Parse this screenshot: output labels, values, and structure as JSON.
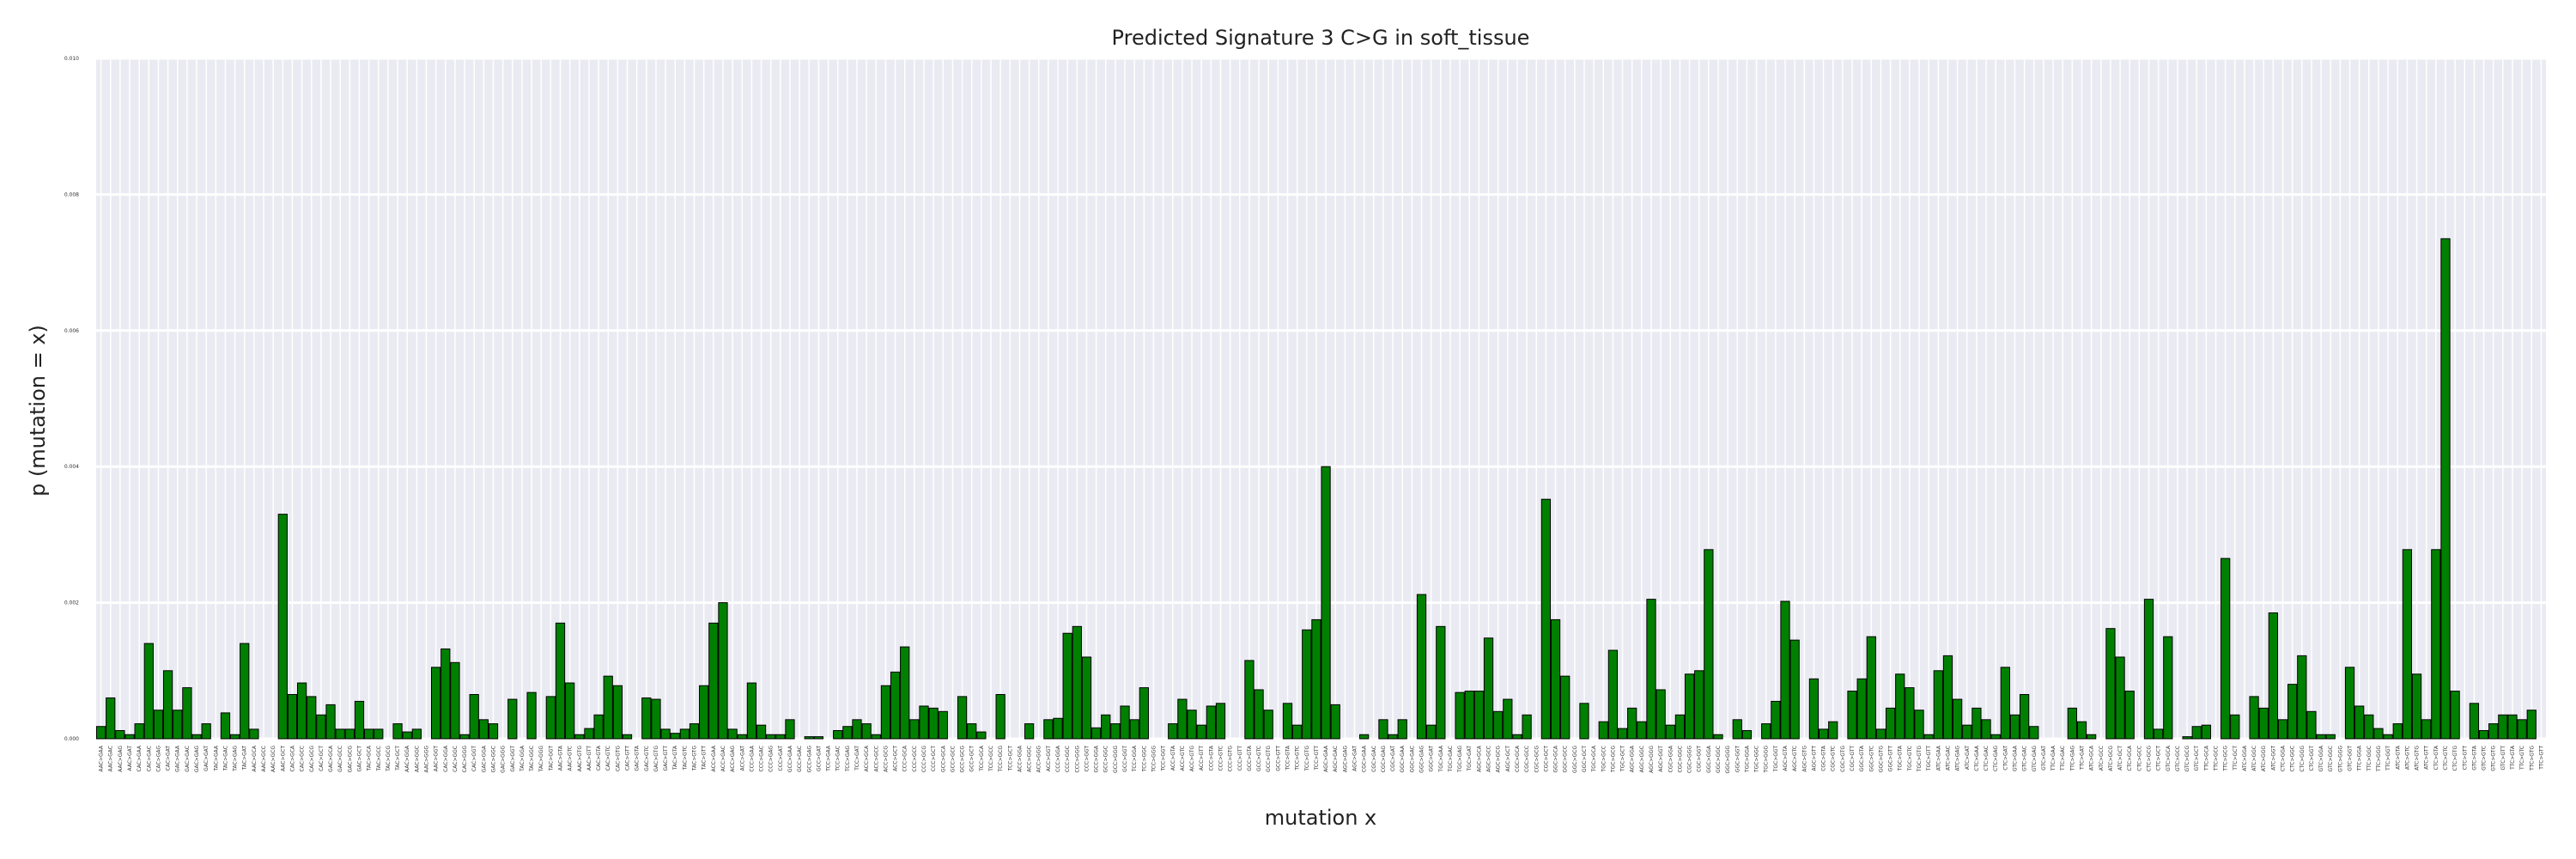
{
  "chart_data": {
    "type": "bar",
    "title": "Predicted Signature 3 C>G in soft_tissue",
    "xlabel": "mutation x",
    "ylabel": "p (mutation = x)",
    "ylim": [
      0,
      0.01
    ],
    "yticks": [
      "0.000",
      "0.002",
      "0.004",
      "0.006",
      "0.008",
      "0.010"
    ],
    "grid": true,
    "bar_color": "#008000",
    "edge_color": "#000000",
    "background": "#eaeaf2",
    "categories": [
      "AAC>GAA",
      "AAC>GAC",
      "AAC>GAG",
      "AAC>GAT",
      "CAC>GAA",
      "CAC>GAC",
      "CAC>GAG",
      "CAC>GAT",
      "GAC>GAA",
      "GAC>GAC",
      "GAC>GAG",
      "GAC>GAT",
      "TAC>GAA",
      "TAC>GAC",
      "TAC>GAG",
      "TAC>GAT",
      "AAC>GCA",
      "AAC>GCC",
      "AAC>GCG",
      "AAC>GCT",
      "CAC>GCA",
      "CAC>GCC",
      "CAC>GCG",
      "CAC>GCT",
      "GAC>GCA",
      "GAC>GCC",
      "GAC>GCG",
      "GAC>GCT",
      "TAC>GCA",
      "TAC>GCC",
      "TAC>GCG",
      "TAC>GCT",
      "AAC>GGA",
      "AAC>GGC",
      "AAC>GGG",
      "AAC>GGT",
      "CAC>GGA",
      "CAC>GGC",
      "CAC>GGG",
      "CAC>GGT",
      "GAC>GGA",
      "GAC>GGC",
      "GAC>GGG",
      "GAC>GGT",
      "TAC>GGA",
      "TAC>GGC",
      "TAC>GGG",
      "TAC>GGT",
      "AAC>GTA",
      "AAC>GTC",
      "AAC>GTG",
      "AAC>GTT",
      "CAC>GTA",
      "CAC>GTC",
      "CAC>GTG",
      "CAC>GTT",
      "GAC>GTA",
      "GAC>GTC",
      "GAC>GTG",
      "GAC>GTT",
      "TAC>GTA",
      "TAC>GTC",
      "TAC>GTG",
      "TAC>GTT",
      "ACC>GAA",
      "ACC>GAC",
      "ACC>GAG",
      "ACC>GAT",
      "CCC>GAA",
      "CCC>GAC",
      "CCC>GAG",
      "CCC>GAT",
      "GCC>GAA",
      "GCC>GAC",
      "GCC>GAG",
      "GCC>GAT",
      "TCC>GAA",
      "TCC>GAC",
      "TCC>GAG",
      "TCC>GAT",
      "ACC>GCA",
      "ACC>GCC",
      "ACC>GCG",
      "ACC>GCT",
      "CCC>GCA",
      "CCC>GCC",
      "CCC>GCG",
      "CCC>GCT",
      "GCC>GCA",
      "GCC>GCC",
      "GCC>GCG",
      "GCC>GCT",
      "TCC>GCA",
      "TCC>GCC",
      "TCC>GCG",
      "TCC>GCT",
      "ACC>GGA",
      "ACC>GGC",
      "ACC>GGG",
      "ACC>GGT",
      "CCC>GGA",
      "CCC>GGC",
      "CCC>GGG",
      "CCC>GGT",
      "GCC>GGA",
      "GCC>GGC",
      "GCC>GGG",
      "GCC>GGT",
      "TCC>GGA",
      "TCC>GGC",
      "TCC>GGG",
      "TCC>GGT",
      "ACC>GTA",
      "ACC>GTC",
      "ACC>GTG",
      "ACC>GTT",
      "CCC>GTA",
      "CCC>GTC",
      "CCC>GTG",
      "CCC>GTT",
      "GCC>GTA",
      "GCC>GTC",
      "GCC>GTG",
      "GCC>GTT",
      "TCC>GTA",
      "TCC>GTC",
      "TCC>GTG",
      "TCC>GTT",
      "AGC>GAA",
      "AGC>GAC",
      "AGC>GAG",
      "AGC>GAT",
      "CGC>GAA",
      "CGC>GAC",
      "CGC>GAG",
      "CGC>GAT",
      "GGC>GAA",
      "GGC>GAC",
      "GGC>GAG",
      "GGC>GAT",
      "TGC>GAA",
      "TGC>GAC",
      "TGC>GAG",
      "TGC>GAT",
      "AGC>GCA",
      "AGC>GCC",
      "AGC>GCG",
      "AGC>GCT",
      "CGC>GCA",
      "CGC>GCC",
      "CGC>GCG",
      "CGC>GCT",
      "GGC>GCA",
      "GGC>GCC",
      "GGC>GCG",
      "GGC>GCT",
      "TGC>GCA",
      "TGC>GCC",
      "TGC>GCG",
      "TGC>GCT",
      "AGC>GGA",
      "AGC>GGC",
      "AGC>GGG",
      "AGC>GGT",
      "CGC>GGA",
      "CGC>GGC",
      "CGC>GGG",
      "CGC>GGT",
      "GGC>GGA",
      "GGC>GGC",
      "GGC>GGG",
      "GGC>GGT",
      "TGC>GGA",
      "TGC>GGC",
      "TGC>GGG",
      "TGC>GGT",
      "AGC>GTA",
      "AGC>GTC",
      "AGC>GTG",
      "AGC>GTT",
      "CGC>GTA",
      "CGC>GTC",
      "CGC>GTG",
      "CGC>GTT",
      "GGC>GTA",
      "GGC>GTC",
      "GGC>GTG",
      "GGC>GTT",
      "TGC>GTA",
      "TGC>GTC",
      "TGC>GTG",
      "TGC>GTT",
      "ATC>GAA",
      "ATC>GAC",
      "ATC>GAG",
      "ATC>GAT",
      "CTC>GAA",
      "CTC>GAC",
      "CTC>GAG",
      "CTC>GAT",
      "GTC>GAA",
      "GTC>GAC",
      "GTC>GAG",
      "GTC>GAT",
      "TTC>GAA",
      "TTC>GAC",
      "TTC>GAG",
      "TTC>GAT",
      "ATC>GCA",
      "ATC>GCC",
      "ATC>GCG",
      "ATC>GCT",
      "CTC>GCA",
      "CTC>GCC",
      "CTC>GCG",
      "CTC>GCT",
      "GTC>GCA",
      "GTC>GCC",
      "GTC>GCG",
      "GTC>GCT",
      "TTC>GCA",
      "TTC>GCC",
      "TTC>GCG",
      "TTC>GCT",
      "ATC>GGA",
      "ATC>GGC",
      "ATC>GGG",
      "ATC>GGT",
      "CTC>GGA",
      "CTC>GGC",
      "CTC>GGG",
      "CTC>GGT",
      "GTC>GGA",
      "GTC>GGC",
      "GTC>GGG",
      "GTC>GGT",
      "TTC>GGA",
      "TTC>GGC",
      "TTC>GGG",
      "TTC>GGT",
      "ATC>GTA",
      "ATC>GTC",
      "ATC>GTG",
      "ATC>GTT",
      "CTC>GTA",
      "CTC>GTC",
      "CTC>GTG",
      "CTC>GTT",
      "GTC>GTA",
      "GTC>GTC",
      "GTC>GTG",
      "GTC>GTT",
      "TTC>GTA",
      "TTC>GTC",
      "TTC>GTG",
      "TTC>GTT"
    ],
    "values": [
      0.00018,
      0.0006,
      0.00012,
      6e-05,
      0.00022,
      0.0014,
      0.00042,
      0.001,
      0.00042,
      0.00075,
      6e-05,
      0.00022,
      0.0,
      0.00038,
      6e-05,
      0.0014,
      0.00014,
      0.0,
      0.0,
      0.0033,
      0.00065,
      0.00082,
      0.00062,
      0.00035,
      0.0005,
      0.00014,
      0.00014,
      0.00055,
      0.00014,
      0.00014,
      0.0,
      0.00022,
      0.0001,
      0.00014,
      0.0,
      0.00105,
      0.00132,
      0.00112,
      6e-05,
      0.00065,
      0.00028,
      0.00022,
      0.0,
      0.00058,
      0.0,
      0.00068,
      0.0,
      0.00062,
      0.0017,
      0.00082,
      6e-05,
      0.00015,
      0.00035,
      0.00092,
      0.00078,
      6e-05,
      0.0,
      0.0006,
      0.00058,
      0.00014,
      8e-05,
      0.00014,
      0.00022,
      0.00078,
      0.0017,
      0.002,
      0.00014,
      6e-05,
      0.00082,
      0.0002,
      6e-05,
      6e-05,
      0.00028,
      0.0,
      3e-05,
      3e-05,
      0.0,
      0.00012,
      0.00018,
      0.00028,
      0.00022,
      6e-05,
      0.00078,
      0.00098,
      0.00135,
      0.00028,
      0.00048,
      0.00045,
      0.0004,
      0.0,
      0.00062,
      0.00022,
      0.0001,
      0.0,
      0.00065,
      0.0,
      0.0,
      0.00022,
      0.0,
      0.00028,
      0.0003,
      0.00155,
      0.00165,
      0.0012,
      0.00016,
      0.00035,
      0.00022,
      0.00048,
      0.00028,
      0.00075,
      0.0,
      0.0,
      0.00022,
      0.00058,
      0.00042,
      0.0002,
      0.00048,
      0.00052,
      0.0,
      0.0,
      0.00115,
      0.00072,
      0.00042,
      0.0,
      0.00052,
      0.0002,
      0.0016,
      0.00175,
      0.004,
      0.0005,
      0.0,
      0.0,
      6e-05,
      0.0,
      0.00028,
      6e-05,
      0.00028,
      0.0,
      0.00212,
      0.0002,
      0.00165,
      0.0,
      0.00068,
      0.0007,
      0.0007,
      0.00148,
      0.0004,
      0.00058,
      6e-05,
      0.00035,
      0.0,
      0.00352,
      0.00175,
      0.00092,
      0.0,
      0.00052,
      0.0,
      0.00025,
      0.0013,
      0.00015,
      0.00045,
      0.00025,
      0.00205,
      0.00072,
      0.0002,
      0.00035,
      0.00095,
      0.001,
      0.00278,
      6e-05,
      0.0,
      0.00028,
      0.00012,
      0.0,
      0.00022,
      0.00055,
      0.00202,
      0.00145,
      0.0,
      0.00088,
      0.00014,
      0.00025,
      0.0,
      0.0007,
      0.00088,
      0.0015,
      0.00014,
      0.00045,
      0.00095,
      0.00075,
      0.00042,
      6e-05,
      0.001,
      0.00122,
      0.00058,
      0.0002,
      0.00045,
      0.00028,
      6e-05,
      0.00105,
      0.00035,
      0.00065,
      0.00018,
      0.0,
      0.0,
      0.0,
      0.00045,
      0.00025,
      6e-05,
      0.0,
      0.00162,
      0.0012,
      0.0007,
      0.0,
      0.00205,
      0.00014,
      0.0015,
      0.0,
      3e-05,
      0.00018,
      0.0002,
      0.0,
      0.00265,
      0.00035,
      0.0,
      0.00062,
      0.00045,
      0.00185,
      0.00028,
      0.0008,
      0.00122,
      0.0004,
      6e-05,
      6e-05,
      0.0,
      0.00105,
      0.00048,
      0.00035,
      0.00015,
      6e-05,
      0.00022,
      0.00278,
      0.00095,
      0.00028,
      0.00278,
      0.00735,
      0.0007,
      0.0,
      0.00052,
      0.00012,
      0.00022,
      0.00035,
      0.00035,
      0.00028,
      0.00042,
      0.0
    ]
  }
}
